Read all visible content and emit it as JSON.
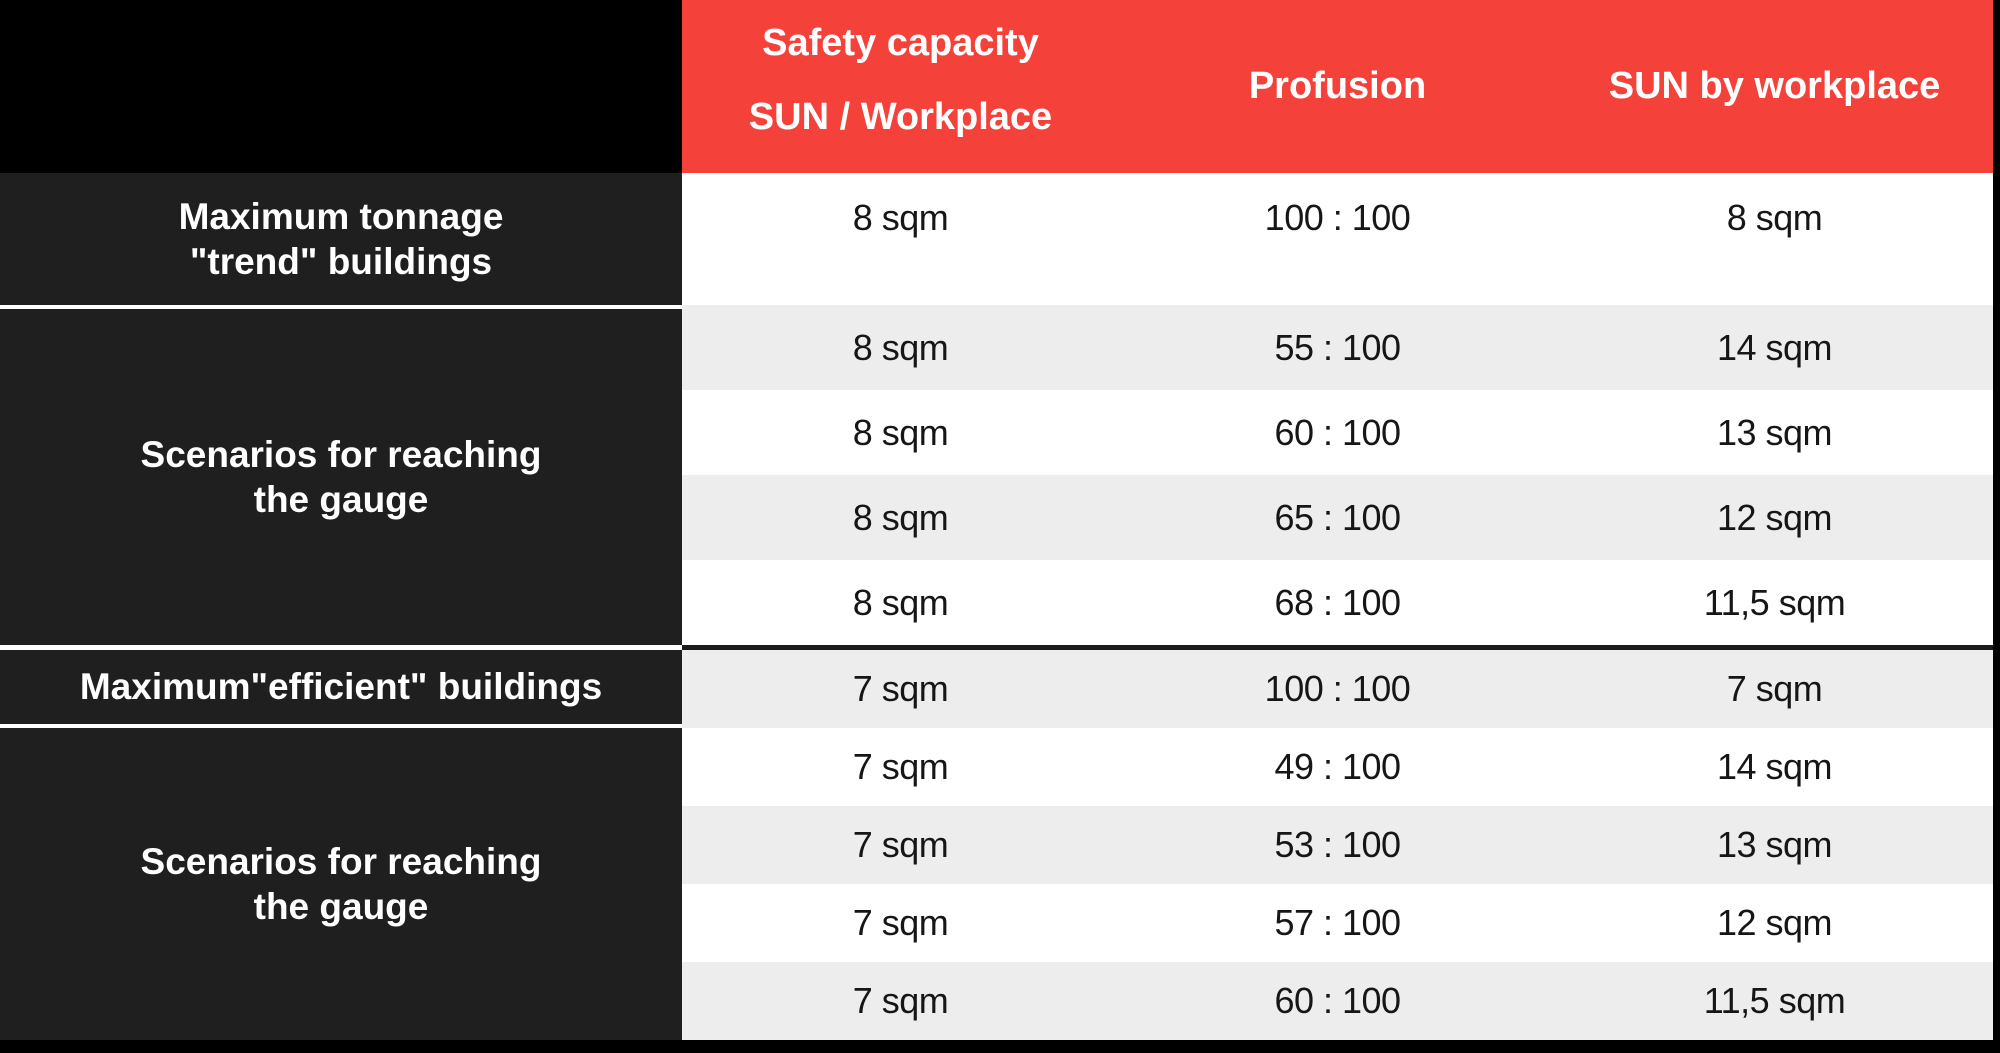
{
  "header": {
    "capacity_line1": "Safety capacity",
    "capacity_line2": "SUN / Workplace",
    "profusion": "Profusion",
    "sun_by_workplace": "SUN by workplace"
  },
  "row_labels": {
    "max_trend_line1": "Maximum tonnage",
    "max_trend_line2": "\"trend\" buildings",
    "scenarios1_line1": "Scenarios for reaching",
    "scenarios1_line2": "the gauge",
    "max_efficient": "Maximum\"efficient\" buildings",
    "scenarios2_line1": "Scenarios for reaching",
    "scenarios2_line2": "the gauge"
  },
  "rows": [
    {
      "cap": "8 sqm",
      "prof": "100 : 100",
      "sun": "8 sqm"
    },
    {
      "cap": "8 sqm",
      "prof": "55 : 100",
      "sun": "14 sqm"
    },
    {
      "cap": "8 sqm",
      "prof": "60 : 100",
      "sun": "13 sqm"
    },
    {
      "cap": "8 sqm",
      "prof": "65 : 100",
      "sun": "12 sqm"
    },
    {
      "cap": "8 sqm",
      "prof": "68 : 100",
      "sun": "11,5 sqm"
    },
    {
      "cap": "7 sqm",
      "prof": "100 : 100",
      "sun": "7 sqm"
    },
    {
      "cap": "7 sqm",
      "prof": "49 : 100",
      "sun": "14 sqm"
    },
    {
      "cap": "7 sqm",
      "prof": "53 : 100",
      "sun": "13 sqm"
    },
    {
      "cap": "7 sqm",
      "prof": "57 : 100",
      "sun": "12 sqm"
    },
    {
      "cap": "7 sqm",
      "prof": "60 : 100",
      "sun": "11,5 sqm"
    }
  ],
  "colors": {
    "header_red": "#F4413A",
    "label_dark_gray": "#1F1F1F",
    "row_alt_gray": "#EDEDED",
    "frame_black": "#000000",
    "text_white": "#FFFFFF",
    "text_dark": "#161616"
  },
  "chart_data": {
    "type": "table",
    "columns": [
      "",
      "Safety capacity SUN / Workplace",
      "Profusion",
      "SUN by workplace"
    ],
    "rows": [
      [
        "Maximum tonnage \"trend\" buildings",
        "8 sqm",
        "100 : 100",
        "8 sqm"
      ],
      [
        "Scenarios for reaching the gauge",
        "8 sqm",
        "55 : 100",
        "14 sqm"
      ],
      [
        "Scenarios for reaching the gauge",
        "8 sqm",
        "60 : 100",
        "13 sqm"
      ],
      [
        "Scenarios for reaching the gauge",
        "8 sqm",
        "65 : 100",
        "12 sqm"
      ],
      [
        "Scenarios for reaching the gauge",
        "8 sqm",
        "68 : 100",
        "11,5 sqm"
      ],
      [
        "Maximum\"efficient\" buildings",
        "7 sqm",
        "100 : 100",
        "7 sqm"
      ],
      [
        "Scenarios for reaching the gauge",
        "7 sqm",
        "49 : 100",
        "14 sqm"
      ],
      [
        "Scenarios for reaching the gauge",
        "7 sqm",
        "53 : 100",
        "13 sqm"
      ],
      [
        "Scenarios for reaching the gauge",
        "7 sqm",
        "57 : 100",
        "12 sqm"
      ],
      [
        "Scenarios for reaching the gauge",
        "7 sqm",
        "60 : 100",
        "11,5 sqm"
      ]
    ]
  }
}
